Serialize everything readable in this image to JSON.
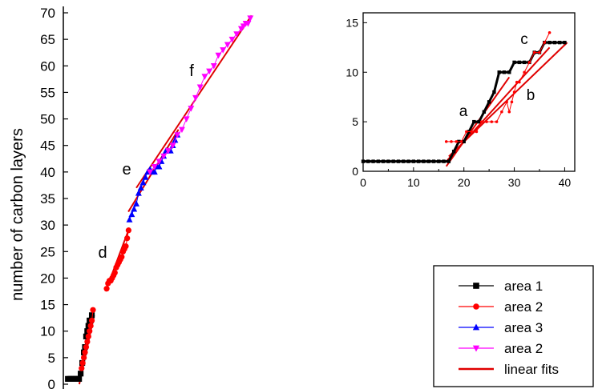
{
  "chart_data": [
    {
      "type": "scatter",
      "panel": "main",
      "ylabel": "number of carbon layers",
      "xlabel": "",
      "ylim": [
        0,
        70
      ],
      "yticks": [
        "0",
        "5",
        "10",
        "15",
        "20",
        "25",
        "30",
        "35",
        "40",
        "45",
        "50",
        "55",
        "60",
        "65",
        "70"
      ],
      "xaxis_visible": false,
      "annotations": [
        "d",
        "e",
        "f"
      ],
      "legend": {
        "placement": "bottom-right",
        "entries": [
          {
            "label": "area 1",
            "color": "#000000",
            "marker": "square"
          },
          {
            "label": "area 2",
            "color": "#ff0000",
            "marker": "circle"
          },
          {
            "label": "area 3",
            "color": "#0000ff",
            "marker": "triangle-up"
          },
          {
            "label": "area 2",
            "color": "#ff00ff",
            "marker": "triangle-down"
          },
          {
            "label": "linear fits",
            "color": "#e00000",
            "marker": "line"
          }
        ]
      },
      "series": [
        {
          "name": "area 1",
          "color": "#000000",
          "marker": "square",
          "x": [
            0,
            0.7,
            1.4,
            2.1,
            2.8,
            3.5,
            4.2,
            4.9,
            5.6,
            6.3,
            7.0,
            7.5,
            8.0,
            8.5,
            9.0,
            9.5,
            10.0,
            10.5
          ],
          "y": [
            1,
            1,
            1,
            1,
            1,
            1,
            1,
            1,
            2,
            4,
            6,
            7,
            9,
            10,
            11,
            12,
            12,
            13
          ]
        },
        {
          "name": "area 2",
          "color": "#ff0000",
          "marker": "circle",
          "x": [
            6.0,
            6.5,
            7.0,
            7.5,
            8.0,
            8.5,
            9.0,
            9.5,
            10.0,
            10.5,
            11.0
          ],
          "y": [
            3,
            4,
            5,
            6,
            7,
            8,
            9,
            10,
            11,
            12,
            14
          ]
        },
        {
          "name": "area 2",
          "color": "#ff0000",
          "marker": "circle",
          "x": [
            17.0,
            17.6,
            18.2,
            18.8,
            19.4,
            20.0,
            20.6,
            21.2,
            21.8,
            22.4,
            23.0,
            23.6,
            24.2,
            24.8,
            25.4,
            26.0,
            26.6
          ],
          "y": [
            18,
            19,
            19.5,
            19.5,
            20,
            20.5,
            21,
            22,
            22.5,
            23,
            23.5,
            24,
            25,
            25.5,
            26,
            27.5,
            29
          ]
        },
        {
          "name": "area 3",
          "color": "#0000ff",
          "marker": "triangle-up",
          "x": [
            27,
            28,
            29,
            30,
            31,
            32,
            33,
            34,
            35,
            36,
            37,
            38,
            39,
            40,
            41,
            42,
            43,
            44,
            45,
            46,
            47,
            48
          ],
          "y": [
            31,
            32,
            33,
            34,
            36,
            37,
            38,
            39,
            40,
            40.5,
            40,
            40,
            41,
            41,
            42,
            43,
            44,
            44,
            44,
            45,
            46,
            47
          ]
        },
        {
          "name": "area 2",
          "color": "#ff00ff",
          "marker": "triangle-down",
          "x": [
            36,
            38,
            40,
            42,
            44,
            46,
            48,
            50,
            52,
            54,
            56,
            58,
            60,
            62,
            64,
            66,
            68,
            70,
            72,
            74,
            76,
            77,
            78,
            79,
            80
          ],
          "y": [
            40,
            41,
            42,
            43,
            44,
            45,
            47,
            48,
            50,
            52,
            54,
            56,
            58,
            59,
            60,
            62,
            63,
            64,
            65,
            66,
            67,
            67.5,
            68,
            68,
            69
          ]
        }
      ],
      "fits": [
        {
          "x": [
            5.0,
            11.5
          ],
          "y": [
            0,
            13
          ]
        },
        {
          "x": [
            16.5,
            27.0
          ],
          "y": [
            17.5,
            29.5
          ]
        },
        {
          "x": [
            26.5,
            48.5
          ],
          "y": [
            32.5,
            48
          ]
        },
        {
          "x": [
            30.0,
            80.5
          ],
          "y": [
            37,
            69.5
          ]
        }
      ],
      "xrange": [
        -2,
        82
      ]
    },
    {
      "type": "scatter",
      "panel": "inset",
      "xlim": [
        0,
        42
      ],
      "ylim": [
        0,
        16
      ],
      "xticks": [
        "0",
        "10",
        "20",
        "30",
        "40"
      ],
      "yticks": [
        "0",
        "5",
        "10",
        "15"
      ],
      "annotations": [
        "a",
        "b",
        "c"
      ],
      "series": [
        {
          "name": "area 1",
          "color": "#000000",
          "marker": "square",
          "x": [
            0,
            1,
            2,
            3,
            4,
            5,
            6,
            7,
            8,
            9,
            10,
            11,
            12,
            13,
            14,
            15,
            16,
            17,
            18,
            19,
            20,
            21,
            22,
            23,
            24,
            25,
            26,
            27,
            28,
            29,
            30,
            31,
            32,
            33,
            34,
            35,
            36,
            37,
            38,
            39,
            40
          ],
          "y": [
            1,
            1,
            1,
            1,
            1,
            1,
            1,
            1,
            1,
            1,
            1,
            1,
            1,
            1,
            1,
            1,
            1,
            1,
            2,
            3,
            3,
            4,
            5,
            5,
            6,
            7,
            8,
            10,
            10,
            10,
            11,
            11,
            11,
            11,
            12,
            12,
            13,
            13,
            13,
            13,
            13
          ]
        },
        {
          "name": "area 2",
          "color": "#ff0000",
          "marker": "circle",
          "x": [
            16.5,
            17.5,
            18.5,
            19.5,
            20.5,
            21.5,
            22.5,
            23.5,
            24.5,
            25.5,
            26.5,
            27.5,
            28.5,
            29.0,
            29.5,
            30.0,
            30.5,
            31.0,
            32.0,
            33.0,
            34.0,
            35.0,
            36.0,
            37.0
          ],
          "y": [
            3,
            3,
            3,
            3,
            4,
            4,
            4,
            5,
            5,
            5,
            5,
            6,
            7,
            6,
            7,
            8,
            9,
            9,
            10,
            11,
            12,
            12,
            13,
            14
          ]
        }
      ],
      "fits": [
        {
          "x": [
            16.5,
            29.0
          ],
          "y": [
            0.5,
            9.5
          ]
        },
        {
          "x": [
            16.5,
            37.0
          ],
          "y": [
            1.0,
            12.5
          ]
        },
        {
          "x": [
            17.0,
            40.5
          ],
          "y": [
            1.5,
            13.0
          ]
        }
      ]
    }
  ]
}
